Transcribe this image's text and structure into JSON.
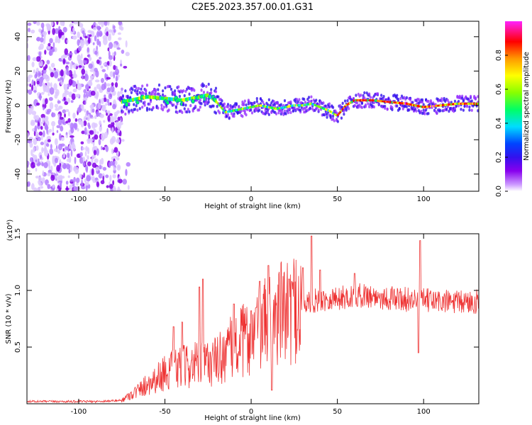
{
  "figure_title": "C2E5.2023.357.00.01.G31",
  "colors": {
    "snr_line": "#ee3333",
    "frame": "#000000",
    "colormap": [
      "#ffffff",
      "#cc99ff",
      "#8800ee",
      "#3311ee",
      "#0044ff",
      "#00ddff",
      "#00ff66",
      "#88ff00",
      "#ffff00",
      "#ff9900",
      "#ff0000",
      "#ff22ff"
    ]
  },
  "chart_data": [
    {
      "type": "heatmap",
      "title": "C2E5.2023.357.00.01.G31",
      "xlabel": "Height of straight line (km)",
      "ylabel": "Frequency (Hz)",
      "xlim": [
        -130,
        132
      ],
      "ylim": [
        -50,
        49
      ],
      "xticks": [
        -100,
        -50,
        0,
        50,
        100
      ],
      "yticks": [
        -40,
        -20,
        0,
        20,
        40
      ],
      "grid": false,
      "colorbar": {
        "label": "Normalized spectral amplitude",
        "range": [
          0,
          1
        ],
        "ticks": [
          "0.0",
          "0.2",
          "0.4",
          "0.6",
          "0.8"
        ]
      },
      "description_points": {
        "noise_region_x": [
          -130,
          -75
        ],
        "ridge_x": [
          -75,
          -60,
          -50,
          -40,
          -30,
          -25,
          -20,
          -15,
          -10,
          -5,
          0,
          5,
          10,
          15,
          20,
          25,
          30,
          35,
          40,
          45,
          50,
          55,
          60,
          70,
          80,
          90,
          100,
          110,
          120,
          132
        ],
        "ridge_freq": [
          2,
          5,
          4,
          3,
          5,
          6,
          2,
          -4,
          -3,
          -2,
          -1,
          0,
          -1,
          -2,
          -1,
          0,
          0,
          1,
          -1,
          -3,
          -6,
          0,
          3,
          3,
          2,
          1,
          -1,
          0,
          1,
          1
        ]
      }
    },
    {
      "type": "line",
      "xlabel": "Height of straight line (km)",
      "ylabel": "SNR (10 * v/v)",
      "y_multiplier": "(x10⁴)",
      "xlim": [
        -130,
        132
      ],
      "ylim": [
        0,
        1.5
      ],
      "xticks": [
        -100,
        -50,
        0,
        50,
        100
      ],
      "yticks": [
        "0.5",
        "1.0",
        "1.5"
      ],
      "grid": false,
      "series": [
        {
          "x": [
            -130,
            -110,
            -90,
            -75,
            -70,
            -65,
            -60,
            -55,
            -50,
            -45,
            -40,
            -35,
            -30,
            -25,
            -20,
            -15,
            -10,
            -5,
            0,
            5,
            10,
            15,
            20,
            25,
            30,
            35,
            40,
            45,
            50,
            55,
            60,
            65,
            70,
            75,
            80,
            85,
            90,
            95,
            100,
            105,
            110,
            115,
            120,
            125,
            132
          ],
          "values": [
            0.02,
            0.02,
            0.02,
            0.03,
            0.08,
            0.12,
            0.18,
            0.22,
            0.28,
            0.3,
            0.32,
            0.34,
            0.35,
            0.36,
            0.38,
            0.45,
            0.5,
            0.55,
            0.6,
            0.65,
            0.72,
            0.78,
            0.82,
            0.86,
            0.88,
            0.9,
            0.92,
            0.93,
            0.93,
            0.94,
            0.95,
            0.96,
            0.95,
            0.94,
            0.93,
            0.93,
            0.92,
            0.92,
            0.91,
            0.91,
            0.9,
            0.9,
            0.89,
            0.9,
            0.9
          ],
          "spikes": [
            [
              -45,
              0.68
            ],
            [
              -40,
              0.72
            ],
            [
              -30,
              1.03
            ],
            [
              -28,
              1.1
            ],
            [
              -10,
              0.88
            ],
            [
              0,
              0.82
            ],
            [
              3,
              0.85
            ],
            [
              5,
              1.08
            ],
            [
              10,
              1.22
            ],
            [
              12,
              0.12
            ],
            [
              22,
              1.1
            ],
            [
              30,
              1.2
            ],
            [
              35,
              1.48
            ],
            [
              40,
              1.18
            ],
            [
              60,
              1.15
            ],
            [
              98,
              1.44
            ],
            [
              97,
              0.45
            ]
          ]
        }
      ]
    }
  ]
}
